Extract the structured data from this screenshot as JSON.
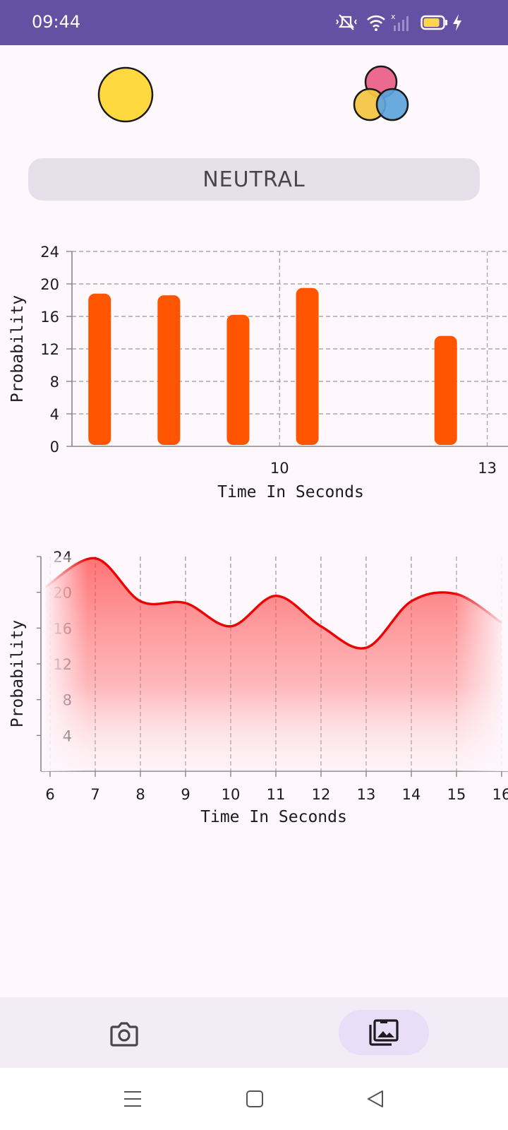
{
  "status_bar": {
    "time": "09:44",
    "icons": [
      "mute-icon",
      "wifi-icon",
      "signal-icon",
      "battery-icon",
      "charging-icon"
    ],
    "background": "#6650a4"
  },
  "header": {
    "left_icon": "neutral-face-icon",
    "right_icon": "color-emotions-icon"
  },
  "emotion_label": "NEUTRAL",
  "colors": {
    "bar": "#ff5500",
    "line": "#ee0000",
    "area": "#ff4d4d"
  },
  "chart_data": [
    {
      "type": "bar",
      "xlabel": "Time In Seconds",
      "ylabel": "Probability",
      "ylim": [
        0,
        24
      ],
      "yticks": [
        "0",
        "4",
        "8",
        "12",
        "16",
        "20",
        "24"
      ],
      "xticks": [
        "10",
        "13"
      ],
      "grid": true,
      "x": [
        7.4,
        8.4,
        9.4,
        10.4,
        12.4
      ],
      "values": [
        18.8,
        18.6,
        16.2,
        19.5,
        13.6
      ]
    },
    {
      "type": "area",
      "xlabel": "Time In Seconds",
      "ylabel": "Probability",
      "ylim": [
        0,
        24
      ],
      "yticks": [
        "4",
        "8",
        "12",
        "16",
        "20",
        "24"
      ],
      "xticks": [
        "6",
        "7",
        "8",
        "9",
        "10",
        "11",
        "12",
        "13",
        "14",
        "15",
        "16"
      ],
      "grid": true,
      "x": [
        5.9,
        7,
        8,
        9,
        10,
        11,
        12,
        13,
        14,
        15,
        16
      ],
      "values": [
        20.6,
        23.8,
        19.0,
        18.8,
        16.2,
        19.6,
        16.2,
        13.8,
        19.0,
        19.8,
        16.6
      ]
    }
  ],
  "bottom_nav": {
    "camera_icon": "camera-icon",
    "gallery_icon": "gallery-icon"
  },
  "system_nav": [
    "menu-icon",
    "home-icon",
    "back-icon"
  ]
}
